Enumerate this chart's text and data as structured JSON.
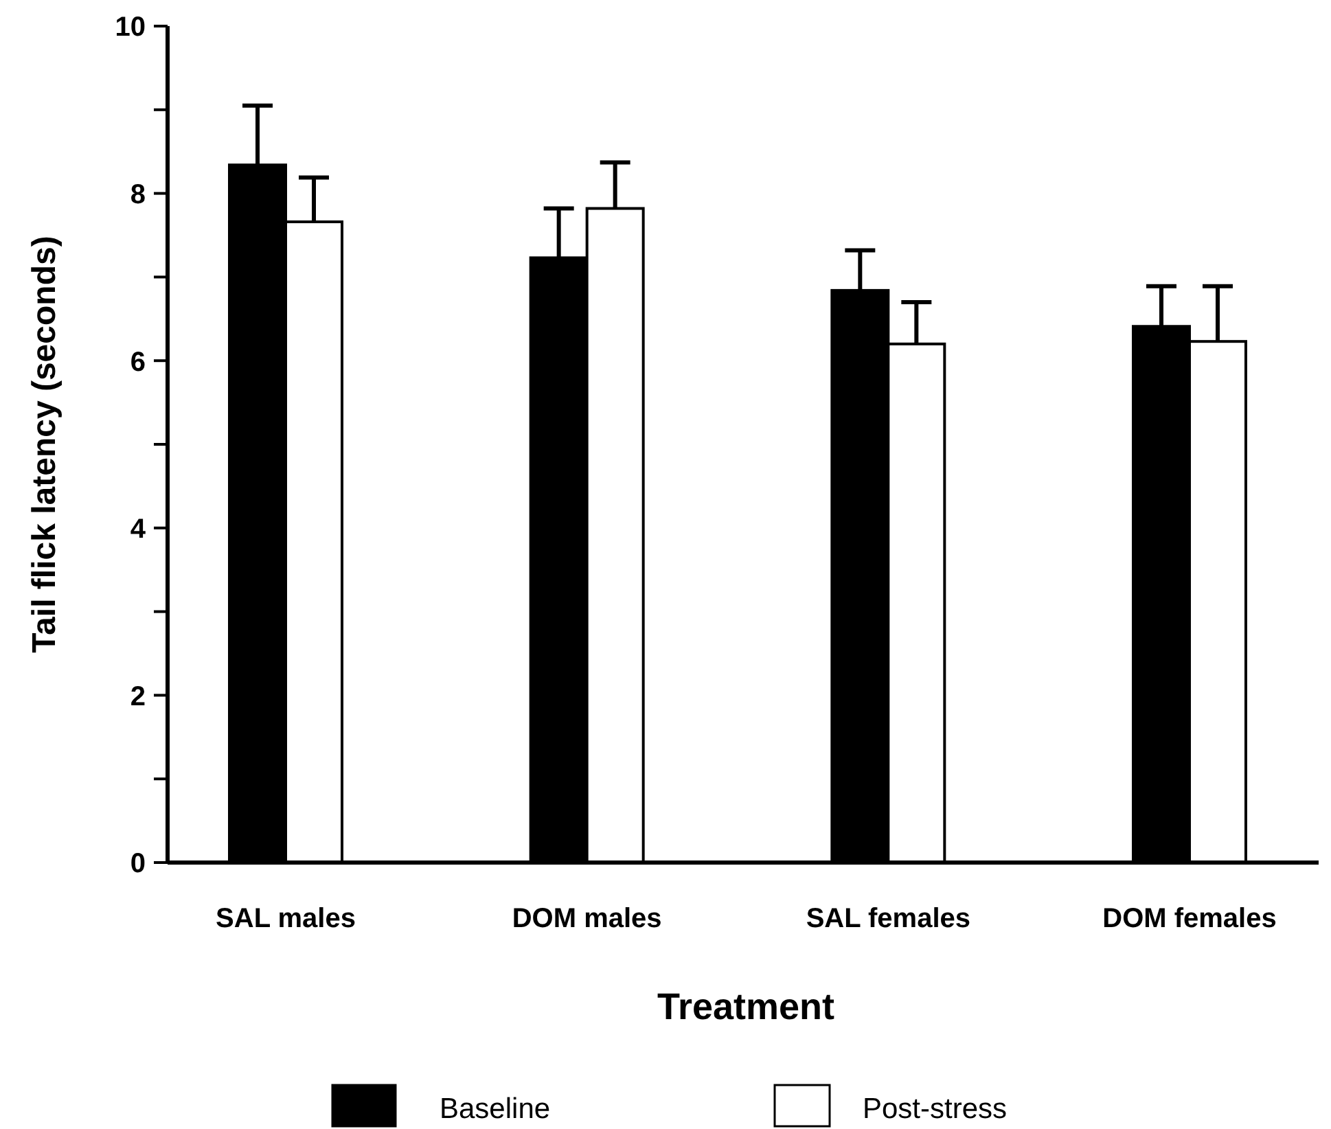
{
  "chart_data": {
    "type": "bar",
    "xlabel": "Treatment",
    "ylabel": "Tail flick latency (seconds)",
    "categories": [
      "SAL males",
      "DOM males",
      "SAL females",
      "DOM females"
    ],
    "series": [
      {
        "name": "Baseline",
        "color": "#000000",
        "values": [
          8.34,
          7.23,
          6.84,
          6.41
        ],
        "errors": [
          [
            8.34,
            9.05
          ],
          [
            7.23,
            7.82
          ],
          [
            6.84,
            7.32
          ],
          [
            6.41,
            6.89
          ]
        ]
      },
      {
        "name": "Post-stress",
        "color": "#ffffff",
        "values": [
          7.66,
          7.82,
          6.2,
          6.23
        ],
        "errors": [
          [
            7.66,
            8.19
          ],
          [
            7.82,
            8.37
          ],
          [
            6.2,
            6.7
          ],
          [
            6.23,
            6.89
          ]
        ]
      }
    ],
    "ylim": [
      0,
      10
    ],
    "yticks": [
      0,
      {
        "value": 1,
        "label": null
      },
      2,
      {
        "value": 3,
        "label": null
      },
      4,
      {
        "value": 5,
        "label": null
      },
      6,
      {
        "value": 7,
        "label": null
      },
      8,
      {
        "value": 9,
        "label": null
      },
      10
    ],
    "grid": false,
    "legend": "bottom"
  }
}
